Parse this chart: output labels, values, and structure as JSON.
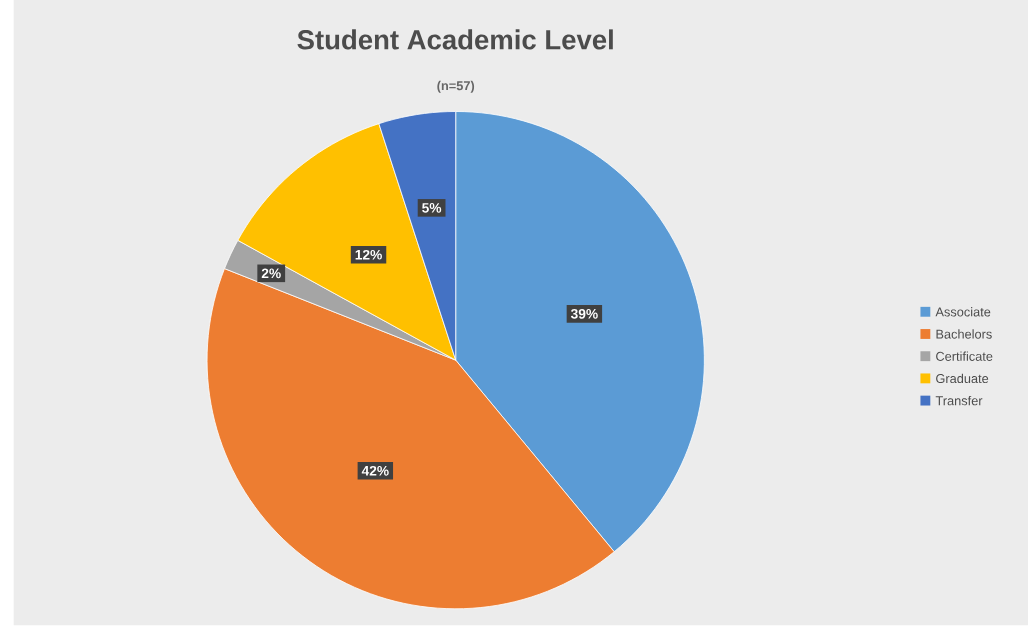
{
  "chart_data": {
    "type": "pie",
    "title": "Student Academic Level",
    "subtitle": "(n=57)",
    "categories": [
      "Associate",
      "Bachelors",
      "Certificate",
      "Graduate",
      "Transfer"
    ],
    "values": [
      39,
      42,
      2,
      12,
      5
    ],
    "value_labels": [
      "39%",
      "42%",
      "2%",
      "12%",
      "5%"
    ],
    "colors": [
      "#5b9bd5",
      "#ed7d31",
      "#a5a5a5",
      "#ffc000",
      "#4472c4"
    ],
    "legend": "right"
  }
}
